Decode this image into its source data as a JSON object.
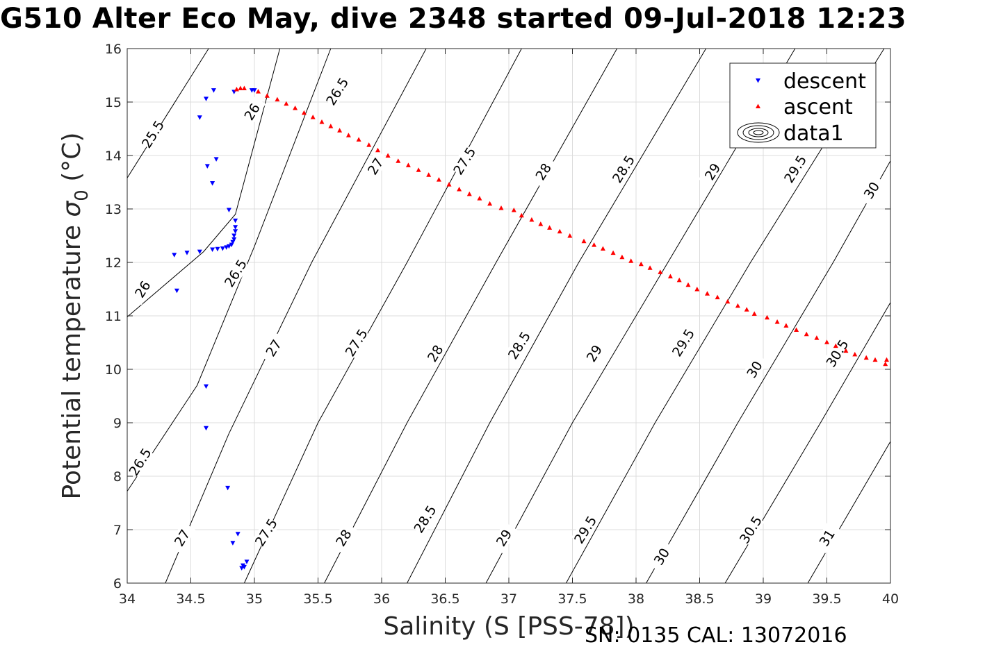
{
  "title": "G510 Alter Eco May, dive 2348 started 09-Jul-2018 12:23",
  "footer": "SN: 0135  CAL: 13072016",
  "chart_data": {
    "type": "scatter",
    "xlabel": "Salinity (S [PSS-78])",
    "ylabel_main": "Potential temperature ",
    "ylabel_sym": "σ",
    "ylabel_sub": "0",
    "ylabel_unit": " (°C)",
    "xlim": [
      34,
      40
    ],
    "ylim": [
      6,
      16
    ],
    "x_ticks": [
      34,
      34.5,
      35,
      35.5,
      36,
      36.5,
      37,
      37.5,
      38,
      38.5,
      39,
      39.5,
      40
    ],
    "x_tick_labels": [
      "34",
      "34.5",
      "35",
      "35.5",
      "36",
      "36.5",
      "37",
      "37.5",
      "38",
      "38.5",
      "39",
      "39.5",
      "40"
    ],
    "y_ticks": [
      6,
      7,
      8,
      9,
      10,
      11,
      12,
      13,
      14,
      15,
      16
    ],
    "y_tick_labels": [
      "6",
      "7",
      "8",
      "9",
      "10",
      "11",
      "12",
      "13",
      "14",
      "15",
      "16"
    ],
    "grid": true,
    "legend_position": "top-right",
    "legend": [
      "descent",
      "ascent",
      "data1"
    ],
    "colors": {
      "descent": "#0000ff",
      "ascent": "#ff0000",
      "contour": "#000000",
      "grid": "#dcdcdc"
    },
    "series": [
      {
        "name": "descent",
        "marker": "triangle-down",
        "color": "#0000ff",
        "points": [
          [
            34.68,
            15.22
          ],
          [
            34.62,
            15.06
          ],
          [
            34.84,
            15.19
          ],
          [
            34.98,
            15.22
          ],
          [
            35.0,
            15.22
          ],
          [
            34.57,
            14.71
          ],
          [
            34.7,
            13.93
          ],
          [
            34.63,
            13.8
          ],
          [
            34.67,
            13.48
          ],
          [
            34.8,
            12.98
          ],
          [
            34.85,
            12.78
          ],
          [
            34.85,
            12.66
          ],
          [
            34.85,
            12.58
          ],
          [
            34.84,
            12.5
          ],
          [
            34.84,
            12.43
          ],
          [
            34.83,
            12.38
          ],
          [
            34.82,
            12.33
          ],
          [
            34.8,
            12.3
          ],
          [
            34.78,
            12.28
          ],
          [
            34.75,
            12.26
          ],
          [
            34.71,
            12.25
          ],
          [
            34.67,
            12.24
          ],
          [
            34.57,
            12.2
          ],
          [
            34.47,
            12.18
          ],
          [
            34.37,
            12.14
          ],
          [
            34.39,
            11.47
          ],
          [
            34.62,
            9.68
          ],
          [
            34.62,
            8.9
          ],
          [
            34.79,
            7.78
          ],
          [
            34.87,
            6.92
          ],
          [
            34.83,
            6.75
          ],
          [
            34.94,
            6.4
          ],
          [
            34.91,
            6.33
          ],
          [
            34.92,
            6.3
          ],
          [
            34.9,
            6.28
          ]
        ]
      },
      {
        "name": "ascent",
        "marker": "triangle-up",
        "color": "#ff0000",
        "points": [
          [
            34.86,
            15.24
          ],
          [
            34.89,
            15.26
          ],
          [
            34.92,
            15.26
          ],
          [
            35.03,
            15.2
          ],
          [
            35.1,
            15.12
          ],
          [
            35.18,
            15.05
          ],
          [
            35.25,
            14.97
          ],
          [
            35.32,
            14.89
          ],
          [
            35.39,
            14.8
          ],
          [
            35.46,
            14.72
          ],
          [
            35.53,
            14.63
          ],
          [
            35.6,
            14.55
          ],
          [
            35.67,
            14.47
          ],
          [
            35.74,
            14.38
          ],
          [
            35.82,
            14.3
          ],
          [
            35.9,
            14.2
          ],
          [
            35.97,
            14.1
          ],
          [
            36.05,
            14.0
          ],
          [
            36.13,
            13.9
          ],
          [
            36.21,
            13.82
          ],
          [
            36.29,
            13.73
          ],
          [
            36.37,
            13.64
          ],
          [
            36.45,
            13.55
          ],
          [
            36.53,
            13.46
          ],
          [
            36.61,
            13.37
          ],
          [
            36.69,
            13.28
          ],
          [
            36.77,
            13.2
          ],
          [
            36.85,
            13.1
          ],
          [
            36.94,
            13.02
          ],
          [
            37.04,
            12.98
          ],
          [
            37.1,
            12.88
          ],
          [
            37.18,
            12.8
          ],
          [
            37.25,
            12.72
          ],
          [
            37.32,
            12.65
          ],
          [
            37.4,
            12.58
          ],
          [
            37.48,
            12.5
          ],
          [
            37.59,
            12.4
          ],
          [
            37.67,
            12.33
          ],
          [
            37.74,
            12.26
          ],
          [
            37.82,
            12.18
          ],
          [
            37.89,
            12.1
          ],
          [
            37.96,
            12.03
          ],
          [
            38.04,
            11.97
          ],
          [
            38.11,
            11.9
          ],
          [
            38.19,
            11.82
          ],
          [
            38.27,
            11.74
          ],
          [
            38.34,
            11.67
          ],
          [
            38.41,
            11.58
          ],
          [
            38.48,
            11.5
          ],
          [
            38.56,
            11.42
          ],
          [
            38.64,
            11.35
          ],
          [
            38.72,
            11.27
          ],
          [
            38.8,
            11.19
          ],
          [
            38.87,
            11.12
          ],
          [
            38.93,
            11.04
          ],
          [
            39.03,
            10.97
          ],
          [
            39.11,
            10.89
          ],
          [
            39.18,
            10.82
          ],
          [
            39.26,
            10.74
          ],
          [
            39.34,
            10.66
          ],
          [
            39.42,
            10.59
          ],
          [
            39.5,
            10.51
          ],
          [
            39.57,
            10.44
          ],
          [
            39.65,
            10.35
          ],
          [
            39.72,
            10.28
          ],
          [
            39.81,
            10.22
          ],
          [
            39.88,
            10.18
          ],
          [
            39.96,
            10.1
          ],
          [
            39.97,
            10.18
          ]
        ]
      }
    ],
    "contours": [
      {
        "level": "25.5",
        "segments": [
          [
            [
              34.0,
              13.58
            ],
            [
              34.64,
              16.0
            ]
          ]
        ],
        "labels": [
          [
            34.2,
            14.4
          ]
        ]
      },
      {
        "level": "26",
        "segments": [
          [
            [
              34.0,
              10.98
            ],
            [
              34.6,
              12.2
            ],
            [
              34.85,
              12.9
            ],
            [
              35.2,
              16.0
            ]
          ]
        ],
        "labels": [
          [
            34.12,
            11.5
          ],
          [
            34.98,
            14.82
          ]
        ]
      },
      {
        "level": "26.5",
        "segments": [
          [
            [
              34.0,
              7.72
            ],
            [
              34.55,
              9.7
            ],
            [
              35.0,
              12.3
            ],
            [
              35.6,
              16.0
            ]
          ]
        ],
        "labels": [
          [
            34.1,
            8.27
          ],
          [
            34.85,
            11.8
          ],
          [
            35.65,
            15.2
          ]
        ]
      },
      {
        "level": "27",
        "segments": [
          [
            [
              34.3,
              6.0
            ],
            [
              34.8,
              8.8
            ],
            [
              35.45,
              12.0
            ],
            [
              36.35,
              16.0
            ]
          ]
        ],
        "labels": [
          [
            34.43,
            6.85
          ],
          [
            35.15,
            10.4
          ],
          [
            35.95,
            13.8
          ]
        ]
      },
      {
        "level": "27.5",
        "segments": [
          [
            [
              34.92,
              6.0
            ],
            [
              35.5,
              9.0
            ],
            [
              36.2,
              12.0
            ],
            [
              37.1,
              16.0
            ]
          ]
        ],
        "labels": [
          [
            35.09,
            6.95
          ],
          [
            35.8,
            10.5
          ],
          [
            36.65,
            13.9
          ]
        ]
      },
      {
        "level": "28",
        "segments": [
          [
            [
              35.55,
              6.0
            ],
            [
              36.2,
              9.0
            ],
            [
              36.9,
              12.0
            ],
            [
              37.85,
              16.0
            ]
          ]
        ],
        "labels": [
          [
            35.7,
            6.85
          ],
          [
            36.42,
            10.3
          ],
          [
            37.27,
            13.7
          ]
        ]
      },
      {
        "level": "28.5",
        "segments": [
          [
            [
              36.2,
              6.0
            ],
            [
              36.85,
              9.0
            ],
            [
              37.55,
              12.0
            ],
            [
              38.55,
              16.0
            ]
          ]
        ],
        "labels": [
          [
            36.34,
            7.2
          ],
          [
            37.08,
            10.45
          ],
          [
            37.9,
            13.75
          ]
        ]
      },
      {
        "level": "29",
        "segments": [
          [
            [
              36.82,
              6.0
            ],
            [
              37.5,
              9.0
            ],
            [
              38.25,
              12.0
            ],
            [
              39.25,
              16.0
            ]
          ]
        ],
        "labels": [
          [
            36.96,
            6.85
          ],
          [
            37.67,
            10.3
          ],
          [
            38.6,
            13.7
          ]
        ]
      },
      {
        "level": "29.5",
        "segments": [
          [
            [
              37.45,
              6.0
            ],
            [
              38.15,
              9.0
            ],
            [
              38.9,
              12.0
            ],
            [
              39.95,
              16.0
            ]
          ]
        ],
        "labels": [
          [
            37.6,
            7.0
          ],
          [
            38.37,
            10.5
          ],
          [
            39.25,
            13.75
          ]
        ]
      },
      {
        "level": "30",
        "segments": [
          [
            [
              38.08,
              6.0
            ],
            [
              38.8,
              9.0
            ],
            [
              39.55,
              12.0
            ],
            [
              40.0,
              13.9
            ]
          ]
        ],
        "labels": [
          [
            38.2,
            6.5
          ],
          [
            38.93,
            10.0
          ],
          [
            39.85,
            13.35
          ]
        ]
      },
      {
        "level": "30.5",
        "segments": [
          [
            [
              38.7,
              6.0
            ],
            [
              39.45,
              9.0
            ],
            [
              40.0,
              11.25
            ]
          ]
        ],
        "labels": [
          [
            38.9,
            7.0
          ],
          [
            39.58,
            10.3
          ]
        ]
      },
      {
        "level": "31",
        "segments": [
          [
            [
              39.35,
              6.0
            ],
            [
              40.0,
              8.65
            ]
          ]
        ],
        "labels": [
          [
            39.5,
            6.85
          ]
        ]
      }
    ]
  }
}
